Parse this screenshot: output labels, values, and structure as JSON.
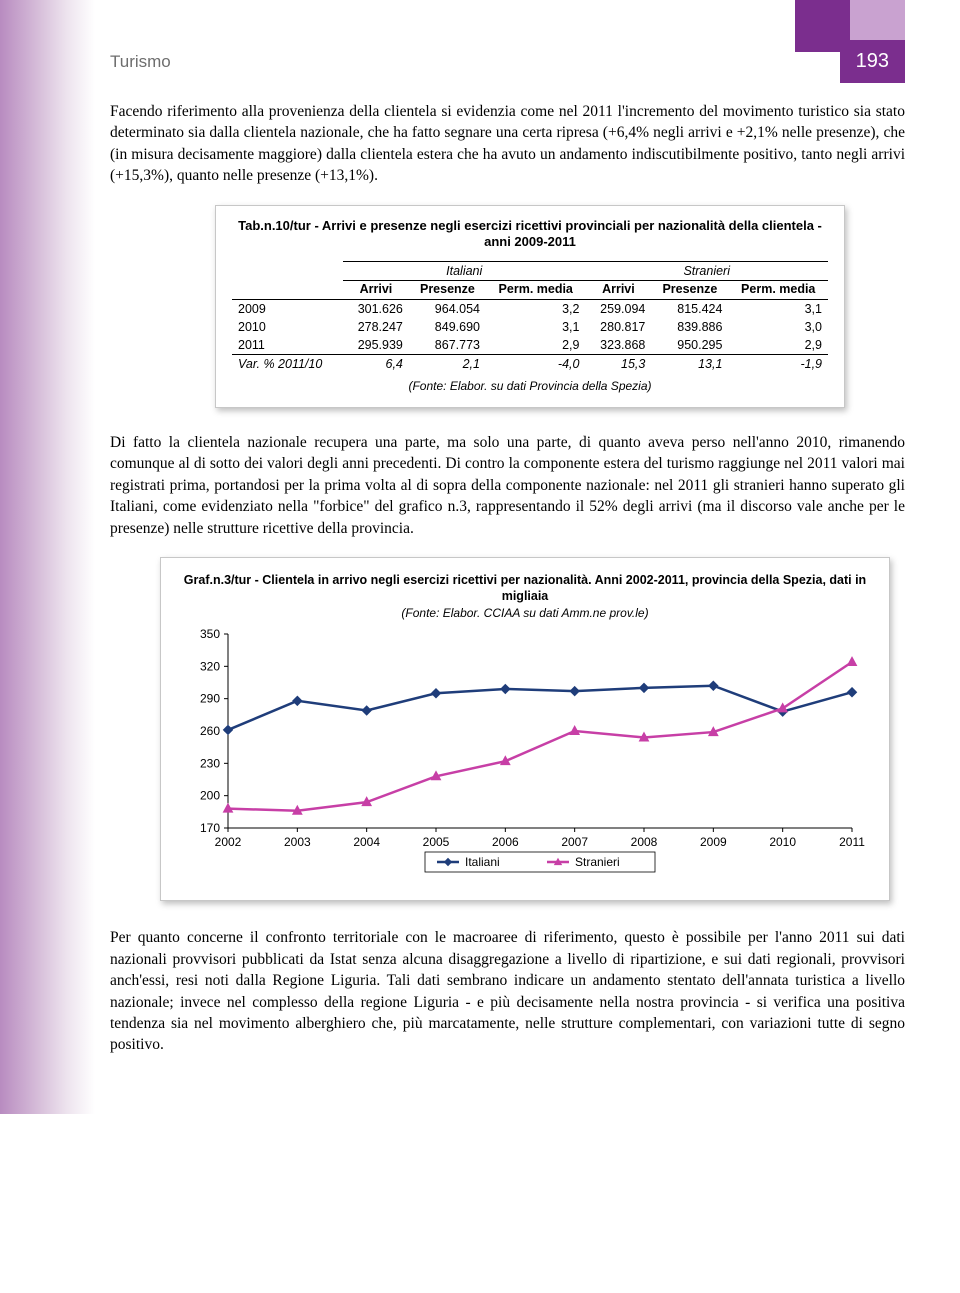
{
  "header": {
    "section": "Turismo",
    "page_number": "193"
  },
  "paragraphs": {
    "p1": "Facendo riferimento alla provenienza della clientela si evidenzia come nel 2011 l'incremento del movimento turistico sia stato determinato sia dalla clientela nazionale, che ha fatto segnare una certa ripresa (+6,4% negli arrivi e +2,1% nelle presenze), che (in misura decisamente maggiore) dalla clientela estera che ha avuto un andamento indiscutibilmente positivo, tanto negli arrivi (+15,3%), quanto nelle presenze (+13,1%).",
    "p2": "Di fatto la clientela nazionale recupera una parte, ma solo una parte, di quanto aveva perso nell'anno 2010, rimanendo comunque al di sotto dei valori degli anni precedenti. Di contro la componente estera del turismo raggiunge nel 2011 valori mai registrati prima, portandosi per la prima volta al di sopra della componente nazionale: nel 2011 gli stranieri hanno superato gli Italiani, come evidenziato nella \"forbice\" del grafico n.3, rappresentando il 52% degli arrivi (ma il discorso vale anche per le presenze) nelle strutture ricettive della provincia.",
    "p3": "Per quanto concerne il confronto territoriale con le macroaree di riferimento, questo è possibile per l'anno 2011 sui dati nazionali provvisori pubblicati da Istat senza alcuna disaggregazione a livello di ripartizione, e sui dati regionali, provvisori anch'essi, resi noti dalla Regione Liguria. Tali dati sembrano indicare un andamento stentato dell'annata turistica a livello nazionale; invece nel complesso della regione Liguria - e più decisamente nella nostra provincia - si verifica una positiva tendenza sia nel movimento alberghiero che, più marcatamente, nelle strutture complementari, con variazioni tutte di segno positivo."
  },
  "table": {
    "title": "Tab.n.10/tur - Arrivi e presenze negli esercizi ricettivi provinciali per nazionalità della clientela - anni 2009-2011",
    "group_headers": [
      "Italiani",
      "Stranieri"
    ],
    "col_headers": [
      "Arrivi",
      "Presenze",
      "Perm. media",
      "Arrivi",
      "Presenze",
      "Perm. media"
    ],
    "rows": [
      {
        "label": "2009",
        "cells": [
          "301.626",
          "964.054",
          "3,2",
          "259.094",
          "815.424",
          "3,1"
        ]
      },
      {
        "label": "2010",
        "cells": [
          "278.247",
          "849.690",
          "3,1",
          "280.817",
          "839.886",
          "3,0"
        ]
      },
      {
        "label": "2011",
        "cells": [
          "295.939",
          "867.773",
          "2,9",
          "323.868",
          "950.295",
          "2,9"
        ]
      }
    ],
    "var_row": {
      "label": "Var. % 2011/10",
      "cells": [
        "6,4",
        "2,1",
        "-4,0",
        "15,3",
        "13,1",
        "-1,9"
      ]
    },
    "source": "(Fonte: Elabor. su dati Provincia della Spezia)"
  },
  "chart": {
    "type": "line",
    "title": "Graf.n.3/tur - Clientela in arrivo negli esercizi ricettivi per nazionalità. Anni 2002-2011, provincia della Spezia, dati in migliaia",
    "source": "(Fonte: Elabor. CCIAA su dati Amm.ne prov.le)",
    "x_categories": [
      "2002",
      "2003",
      "2004",
      "2005",
      "2006",
      "2007",
      "2008",
      "2009",
      "2010",
      "2011"
    ],
    "ylim": [
      170,
      350
    ],
    "ytick_step": 30,
    "yticks": [
      "170",
      "200",
      "230",
      "260",
      "290",
      "320",
      "350"
    ],
    "series": [
      {
        "name": "Italiani",
        "color": "#1f3d7a",
        "marker": "diamond",
        "values": [
          261,
          288,
          279,
          295,
          299,
          297,
          300,
          302,
          278,
          296
        ]
      },
      {
        "name": "Stranieri",
        "color": "#c73fa6",
        "marker": "triangle",
        "values": [
          188,
          186,
          194,
          218,
          232,
          260,
          254,
          259,
          281,
          324
        ]
      }
    ],
    "legend_labels": [
      "Italiani",
      "Stranieri"
    ],
    "background_color": "#ffffff",
    "axis_color": "#000000",
    "line_width": 2.5,
    "marker_size": 7,
    "font_size_axis": 12
  },
  "colors": {
    "brand_violet": "#7b2e8e",
    "brand_light": "#c9a2d0",
    "text_gray": "#6e6e6e"
  }
}
